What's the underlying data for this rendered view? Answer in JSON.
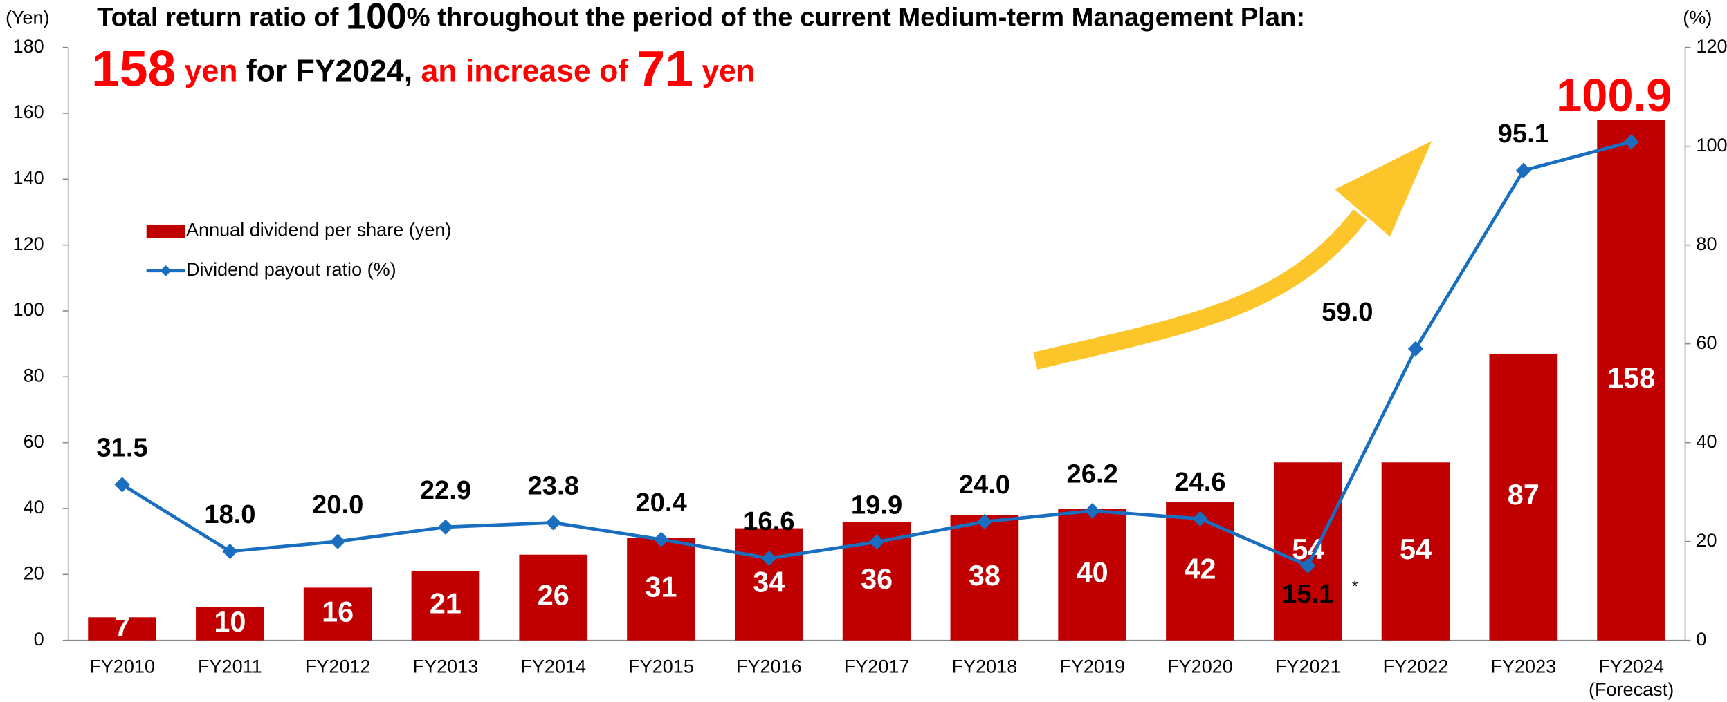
{
  "chart_data": {
    "type": "bar",
    "title_parts": [
      "Total return ratio of ",
      "100",
      "% throughout the period of the current Medium-term Management Plan:"
    ],
    "subtitle_parts": [
      "158",
      " yen",
      " for FY2024,",
      " an increase of ",
      "71",
      " yen"
    ],
    "y_label": "(Yen)",
    "y2_label": "(%)",
    "categories": [
      "FY2010",
      "FY2011",
      "FY2012",
      "FY2013",
      "FY2014",
      "FY2015",
      "FY2016",
      "FY2017",
      "FY2018",
      "FY2019",
      "FY2020",
      "FY2021",
      "FY2022",
      "FY2023",
      "FY2024"
    ],
    "category_note": "(Forecast)",
    "series": [
      {
        "name": "Annual dividend per share (yen)",
        "type": "bar",
        "color": "#c00000",
        "values": [
          7,
          10,
          16,
          21,
          26,
          31,
          34,
          36,
          38,
          40,
          42,
          54,
          54,
          87,
          158
        ]
      },
      {
        "name": "Dividend payout ratio (%)",
        "type": "line",
        "axis": "y2",
        "color": "#1a6ec0",
        "values": [
          31.5,
          18.0,
          20.0,
          22.9,
          23.8,
          20.4,
          16.6,
          19.9,
          24.0,
          26.2,
          24.6,
          15.1,
          59.0,
          95.1,
          100.9
        ],
        "value_labels": [
          "31.5",
          "18.0",
          "20.0",
          "22.9",
          "23.8",
          "20.4",
          "16.6",
          "19.9",
          "24.0",
          "26.2",
          "24.6",
          "15.1",
          "59.0",
          "95.1",
          "100.9"
        ]
      }
    ],
    "annotation": "*",
    "ylim": [
      0,
      180
    ],
    "yticks": [
      0,
      20,
      40,
      60,
      80,
      100,
      120,
      140,
      160,
      180
    ],
    "y2lim": [
      0,
      120
    ],
    "y2ticks": [
      0,
      20,
      40,
      60,
      80,
      100,
      120
    ],
    "grid": false,
    "legend": "upper left"
  }
}
